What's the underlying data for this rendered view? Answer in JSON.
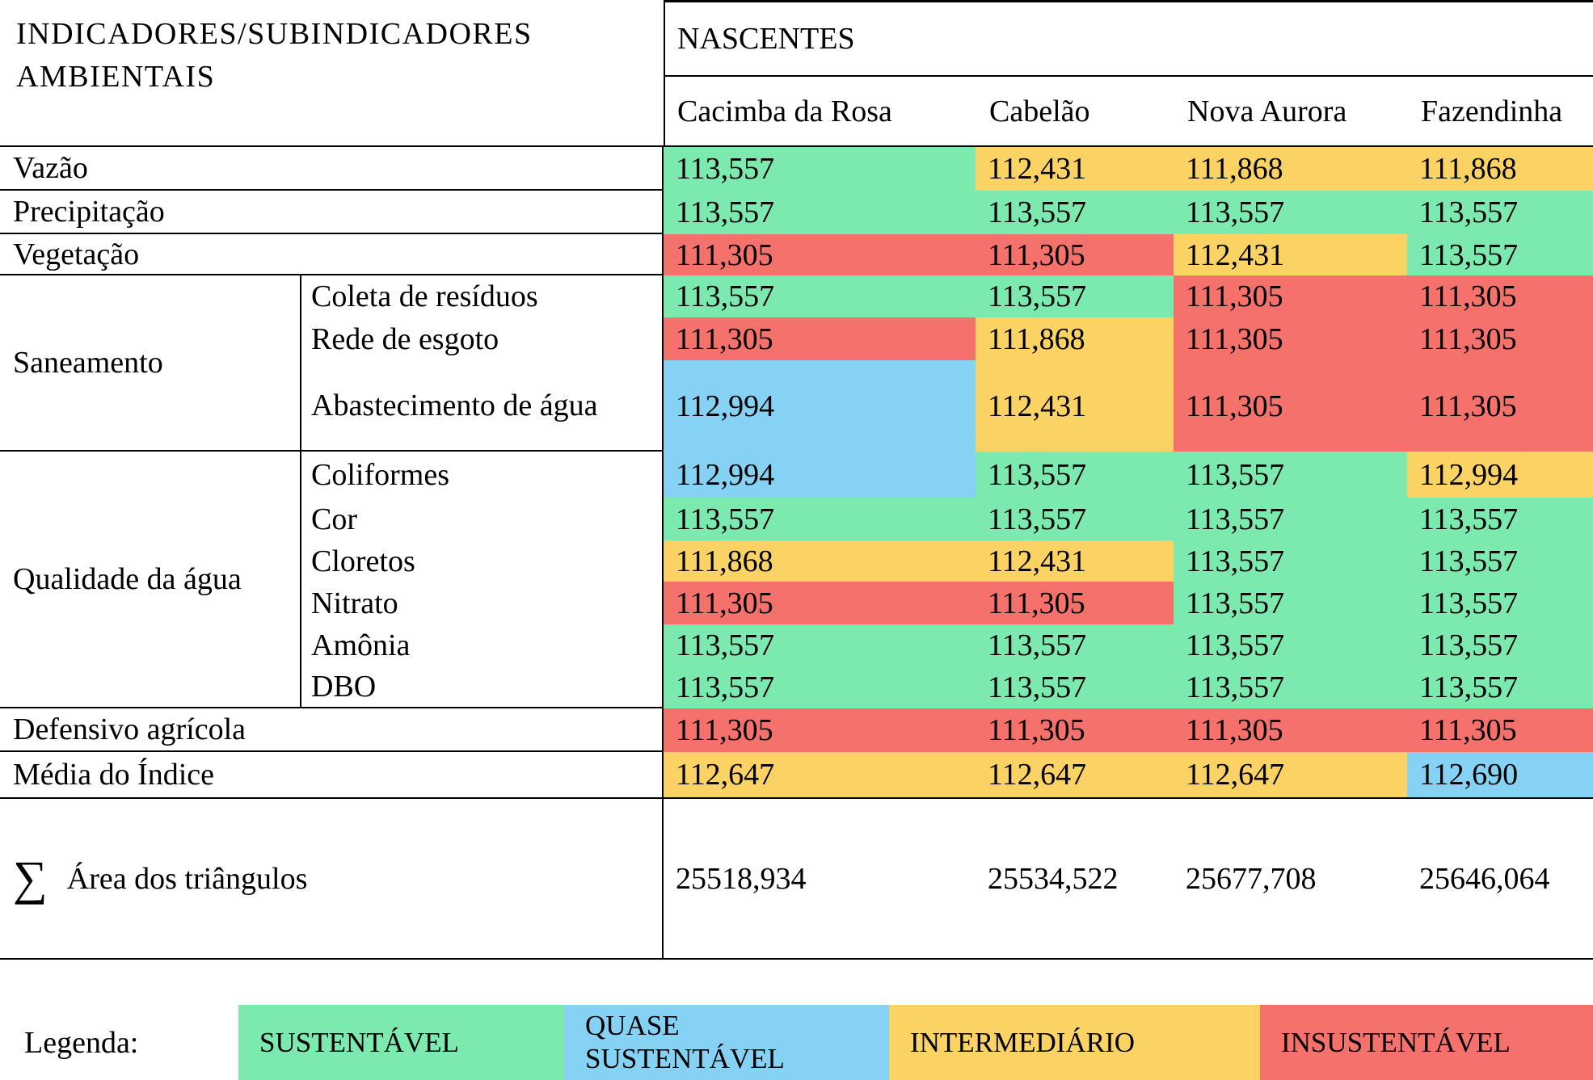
{
  "chart_data": {
    "type": "table",
    "header": {
      "row_header_line1": "INDICADORES/SUBINDICADORES",
      "row_header_line2": "AMBIENTAIS",
      "columns_group_title": "NASCENTES",
      "columns": [
        "Cacimba da Rosa",
        "Cabelão",
        "Nova Aurora",
        "Fazendinha"
      ]
    },
    "status_colors": {
      "SUSTENTAVEL": "#7ce9ae",
      "QUASE_SUSTENTAVEL": "#85d2f5",
      "INTERMEDIARIO": "#fbd264",
      "INSUSTENTAVEL": "#f4716c"
    },
    "groups": [
      {
        "label": "Saneamento"
      },
      {
        "label": "Qualidade da água"
      }
    ],
    "rows": [
      {
        "indicator": "Vazão",
        "values": [
          "113,557",
          "112,431",
          "111,868",
          "111,868"
        ],
        "colors": [
          "SUSTENTAVEL",
          "INTERMEDIARIO",
          "INTERMEDIARIO",
          "INTERMEDIARIO"
        ]
      },
      {
        "indicator": "Precipitação",
        "values": [
          "113,557",
          "113,557",
          "113,557",
          "113,557"
        ],
        "colors": [
          "SUSTENTAVEL",
          "SUSTENTAVEL",
          "SUSTENTAVEL",
          "SUSTENTAVEL"
        ]
      },
      {
        "indicator": "Vegetação",
        "values": [
          "111,305",
          "111,305",
          "112,431",
          "113,557"
        ],
        "colors": [
          "INSUSTENTAVEL",
          "INSUSTENTAVEL",
          "INTERMEDIARIO",
          "SUSTENTAVEL"
        ]
      },
      {
        "indicator": "Coleta de resíduos",
        "values": [
          "113,557",
          "113,557",
          "111,305",
          "111,305"
        ],
        "colors": [
          "SUSTENTAVEL",
          "SUSTENTAVEL",
          "INSUSTENTAVEL",
          "INSUSTENTAVEL"
        ]
      },
      {
        "indicator": "Rede de esgoto",
        "values": [
          "111,305",
          "111,868",
          "111,305",
          "111,305"
        ],
        "colors": [
          "INSUSTENTAVEL",
          "INTERMEDIARIO",
          "INSUSTENTAVEL",
          "INSUSTENTAVEL"
        ]
      },
      {
        "indicator": "Abastecimento de água",
        "values": [
          "112,994",
          "112,431",
          "111,305",
          "111,305"
        ],
        "colors": [
          "QUASE_SUSTENTAVEL",
          "INTERMEDIARIO",
          "INSUSTENTAVEL",
          "INSUSTENTAVEL"
        ]
      },
      {
        "indicator": "Coliformes",
        "values": [
          "112,994",
          "113,557",
          "113,557",
          "112,994"
        ],
        "colors": [
          "QUASE_SUSTENTAVEL",
          "SUSTENTAVEL",
          "SUSTENTAVEL",
          "INTERMEDIARIO"
        ]
      },
      {
        "indicator": "Cor",
        "values": [
          "113,557",
          "113,557",
          "113,557",
          "113,557"
        ],
        "colors": [
          "SUSTENTAVEL",
          "SUSTENTAVEL",
          "SUSTENTAVEL",
          "SUSTENTAVEL"
        ]
      },
      {
        "indicator": "Cloretos",
        "values": [
          "111,868",
          "112,431",
          "113,557",
          "113,557"
        ],
        "colors": [
          "INTERMEDIARIO",
          "INTERMEDIARIO",
          "SUSTENTAVEL",
          "SUSTENTAVEL"
        ]
      },
      {
        "indicator": "Nitrato",
        "values": [
          "111,305",
          "111,305",
          "113,557",
          "113,557"
        ],
        "colors": [
          "INSUSTENTAVEL",
          "INSUSTENTAVEL",
          "SUSTENTAVEL",
          "SUSTENTAVEL"
        ]
      },
      {
        "indicator": "Amônia",
        "values": [
          "113,557",
          "113,557",
          "113,557",
          "113,557"
        ],
        "colors": [
          "SUSTENTAVEL",
          "SUSTENTAVEL",
          "SUSTENTAVEL",
          "SUSTENTAVEL"
        ]
      },
      {
        "indicator": "DBO",
        "values": [
          "113,557",
          "113,557",
          "113,557",
          "113,557"
        ],
        "colors": [
          "SUSTENTAVEL",
          "SUSTENTAVEL",
          "SUSTENTAVEL",
          "SUSTENTAVEL"
        ]
      },
      {
        "indicator": "Defensivo agrícola",
        "values": [
          "111,305",
          "111,305",
          "111,305",
          "111,305"
        ],
        "colors": [
          "INSUSTENTAVEL",
          "INSUSTENTAVEL",
          "INSUSTENTAVEL",
          "INSUSTENTAVEL"
        ]
      },
      {
        "indicator": "Média do Índice",
        "values": [
          "112,647",
          "112,647",
          "112,647",
          "112,690"
        ],
        "colors": [
          "INTERMEDIARIO",
          "INTERMEDIARIO",
          "INTERMEDIARIO",
          "QUASE_SUSTENTAVEL"
        ]
      }
    ],
    "sum_row": {
      "sigma": "∑",
      "label": "Área dos triângulos",
      "values": [
        "25518,934",
        "25534,522",
        "25677,708",
        "25646,064"
      ]
    },
    "legend": {
      "title": "Legenda:",
      "items": [
        {
          "label": "SUSTENTÁVEL",
          "color_key": "SUSTENTAVEL"
        },
        {
          "label": "QUASE SUSTENTÁVEL",
          "color_key": "QUASE_SUSTENTAVEL"
        },
        {
          "label": "INTERMEDIÁRIO",
          "color_key": "INTERMEDIARIO"
        },
        {
          "label": "INSUSTENTÁVEL",
          "color_key": "INSUSTENTAVEL"
        }
      ]
    }
  }
}
